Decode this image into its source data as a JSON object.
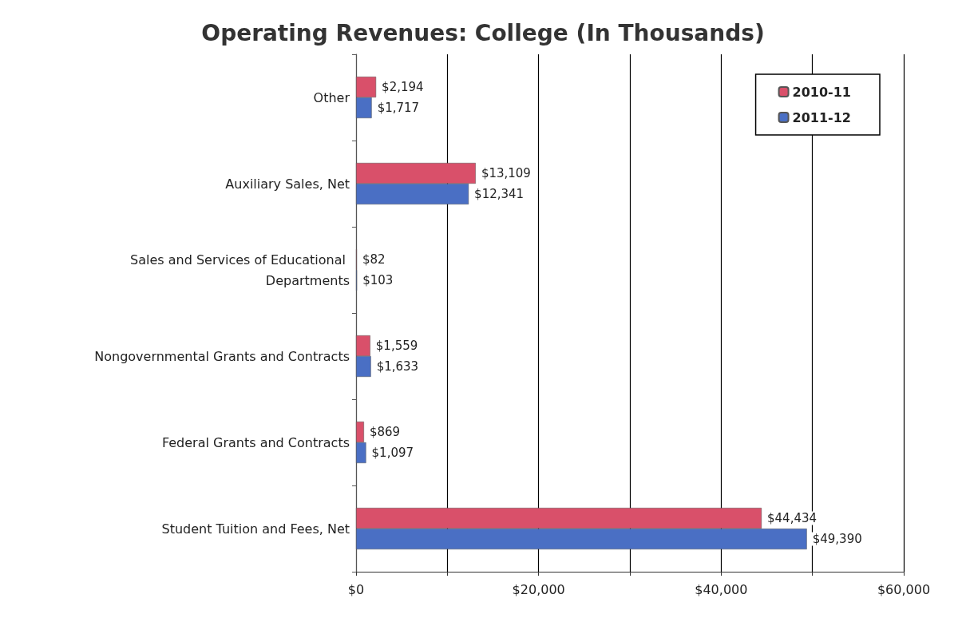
{
  "chart_data": {
    "type": "bar",
    "orientation": "horizontal",
    "title": "Operating Revenues: College (In Thousands)",
    "categories": [
      "Other",
      "Auxiliary Sales, Net",
      "Sales and Services of Educational Departments",
      "Nongovernmental Grants and Contracts",
      "Federal Grants and Contracts",
      "Student Tuition and Fees, Net"
    ],
    "series": [
      {
        "name": "2010-11",
        "color": "#d9506a",
        "values": [
          2194,
          13109,
          82,
          1559,
          869,
          44434
        ],
        "value_labels": [
          "$2,194",
          "$13,109",
          "$82",
          "$1,559",
          "$869",
          "$44,434"
        ]
      },
      {
        "name": "2011-12",
        "color": "#4a6fc4",
        "values": [
          1717,
          12341,
          103,
          1633,
          1097,
          49390
        ],
        "value_labels": [
          "$1,717",
          "$12,341",
          "$103",
          "$1,633",
          "$1,097",
          "$49,390"
        ]
      }
    ],
    "xlim": [
      0,
      60000
    ],
    "xticks": [
      {
        "value": 0,
        "label": "$0"
      },
      {
        "value": 10000,
        "label": null
      },
      {
        "value": 20000,
        "label": "$20,000"
      },
      {
        "value": 30000,
        "label": null
      },
      {
        "value": 40000,
        "label": "$40,000"
      },
      {
        "value": 50000,
        "label": null
      },
      {
        "value": 60000,
        "label": "$60,000"
      }
    ],
    "grid": "x",
    "legend": "top right"
  }
}
